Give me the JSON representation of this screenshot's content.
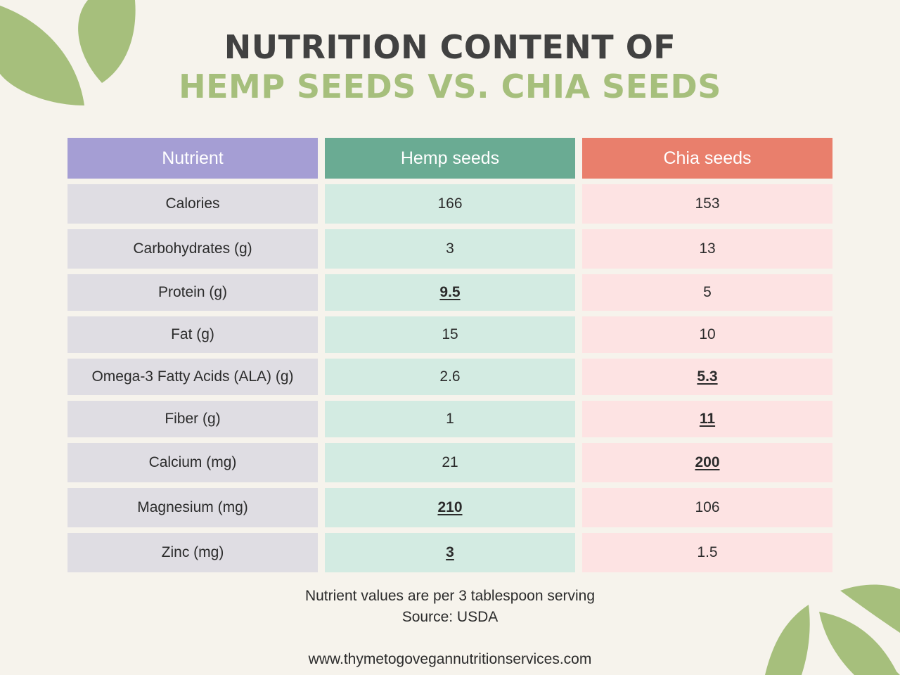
{
  "title": {
    "line1": "NUTRITION CONTENT OF",
    "line2": "HEMP SEEDS VS. CHIA SEEDS"
  },
  "colors": {
    "background": "#f6f3ec",
    "title_dark": "#414141",
    "title_green": "#a6bf7c",
    "leaf": "#a6bf7c",
    "header_nutrient": "#a59ed4",
    "header_hemp": "#6aab93",
    "header_chia": "#e97f6c",
    "row_nutrient": "#dfdde3",
    "row_hemp": "#d3ebe2",
    "row_chia": "#fde3e3"
  },
  "decorations": [
    "leaf-top-left",
    "leaf-bottom-right"
  ],
  "chart_data": {
    "type": "table",
    "columns": [
      "Nutrient",
      "Hemp seeds",
      "Chia seeds"
    ],
    "rows": [
      {
        "nutrient": "Calories",
        "hemp": "166",
        "chia": "153",
        "highlight": ""
      },
      {
        "nutrient": "Carbohydrates (g)",
        "hemp": "3",
        "chia": "13",
        "highlight": ""
      },
      {
        "nutrient": "Protein (g)",
        "hemp": "9.5",
        "chia": "5",
        "highlight": "hemp"
      },
      {
        "nutrient": "Fat (g)",
        "hemp": "15",
        "chia": "10",
        "highlight": ""
      },
      {
        "nutrient": "Omega-3 Fatty Acids (ALA) (g)",
        "hemp": "2.6",
        "chia": "5.3",
        "highlight": "chia"
      },
      {
        "nutrient": "Fiber (g)",
        "hemp": "1",
        "chia": "11",
        "highlight": "chia"
      },
      {
        "nutrient": "Calcium (mg)",
        "hemp": "21",
        "chia": "200",
        "highlight": "chia"
      },
      {
        "nutrient": "Magnesium (mg)",
        "hemp": "210",
        "chia": "106",
        "highlight": "hemp"
      },
      {
        "nutrient": "Zinc (mg)",
        "hemp": "3",
        "chia": "1.5",
        "highlight": "hemp"
      }
    ]
  },
  "footer": {
    "serving": "Nutrient values are per 3 tablespoon serving",
    "source": "Source: USDA",
    "url": "www.thymetogovegannutritionservices.com"
  }
}
